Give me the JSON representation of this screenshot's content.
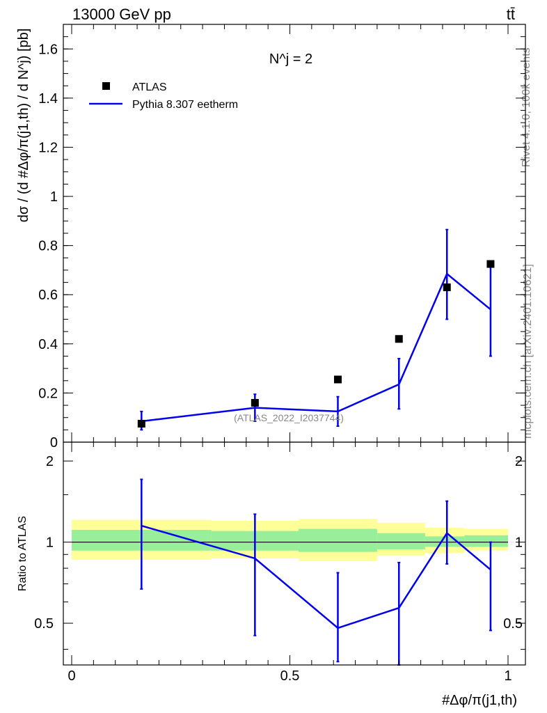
{
  "header": {
    "energy_label": "13000 GeV pp",
    "process_label": "tt̄"
  },
  "side_labels": {
    "rivet": "Rivet 4.1.0,  100k events",
    "mcplots": "mcplots.cern.ch [arXiv:2401.10621]"
  },
  "chart_data": [
    {
      "name": "main-panel",
      "type": "scatter",
      "title": "N^j = 2",
      "ylabel": "dσ / (d #Δφ/π(j1,th) / d N^j) [pb]",
      "xlabel": "",
      "watermark": "(ATLAS_2022_I2037744)",
      "xlim": [
        0,
        1
      ],
      "ylim": [
        0,
        1.7
      ],
      "x_ticks": [
        0,
        0.5,
        1
      ],
      "y_ticks": [
        0,
        0.2,
        0.4,
        0.6,
        0.8,
        1,
        1.2,
        1.4,
        1.6
      ],
      "y_tick_labels": [
        "0",
        "0.2",
        "0.4",
        "0.6",
        "0.8",
        "1",
        "1.2",
        "1.4",
        "1.6"
      ],
      "legend": {
        "placement": "top-left",
        "entries": [
          "ATLAS",
          "Pythia 8.307 eetherm"
        ]
      },
      "series": [
        {
          "name": "ATLAS",
          "style": "markers",
          "color": "#000000",
          "x": [
            0.16,
            0.42,
            0.61,
            0.75,
            0.86,
            0.96
          ],
          "y": [
            0.075,
            0.16,
            0.255,
            0.42,
            0.63,
            0.725
          ]
        },
        {
          "name": "Pythia 8.307 eetherm",
          "style": "line",
          "color": "#0000ee",
          "x": [
            0.16,
            0.42,
            0.61,
            0.75,
            0.86,
            0.96
          ],
          "y": [
            0.085,
            0.14,
            0.125,
            0.235,
            0.685,
            0.54
          ],
          "err_low": [
            0.05,
            0.085,
            0.065,
            0.135,
            0.5,
            0.35
          ],
          "err_high": [
            0.125,
            0.195,
            0.185,
            0.34,
            0.865,
            0.73
          ]
        }
      ]
    },
    {
      "name": "ratio-panel",
      "type": "line",
      "ylabel": "Ratio to ATLAS",
      "xlabel": "#Δφ/π(j1,th)",
      "xlim": [
        0,
        1
      ],
      "ylim": [
        0.35,
        2.35
      ],
      "y_scale": "log",
      "x_ticks": [
        0,
        0.5,
        1
      ],
      "x_tick_labels": [
        "0",
        "0.5",
        "1"
      ],
      "y_ticks": [
        0.5,
        1,
        2
      ],
      "y_tick_labels": [
        "0.5",
        "1",
        "2"
      ],
      "reference_line": 1,
      "bands": [
        {
          "x_start": 0.0,
          "x_end": 0.32,
          "yellow": [
            0.86,
            1.21
          ],
          "green": [
            0.93,
            1.11
          ]
        },
        {
          "x_start": 0.32,
          "x_end": 0.52,
          "yellow": [
            0.87,
            1.2
          ],
          "green": [
            0.93,
            1.1
          ]
        },
        {
          "x_start": 0.52,
          "x_end": 0.7,
          "yellow": [
            0.85,
            1.22
          ],
          "green": [
            0.92,
            1.12
          ]
        },
        {
          "x_start": 0.7,
          "x_end": 0.81,
          "yellow": [
            0.89,
            1.18
          ],
          "green": [
            0.94,
            1.08
          ]
        },
        {
          "x_start": 0.81,
          "x_end": 0.9,
          "yellow": [
            0.91,
            1.13
          ],
          "green": [
            0.96,
            1.05
          ]
        },
        {
          "x_start": 0.9,
          "x_end": 1.0,
          "yellow": [
            0.93,
            1.12
          ],
          "green": [
            0.96,
            1.06
          ]
        }
      ],
      "series": [
        {
          "name": "Pythia 8.307 eetherm / ATLAS",
          "color": "#0000ee",
          "x": [
            0.16,
            0.42,
            0.61,
            0.75,
            0.86,
            0.96
          ],
          "y": [
            1.15,
            0.87,
            0.48,
            0.57,
            1.08,
            0.79
          ],
          "err_low": [
            0.67,
            0.45,
            0.36,
            0.35,
            0.83,
            0.47
          ],
          "err_high": [
            1.71,
            1.27,
            0.77,
            0.84,
            1.42,
            1.0
          ]
        }
      ]
    }
  ]
}
